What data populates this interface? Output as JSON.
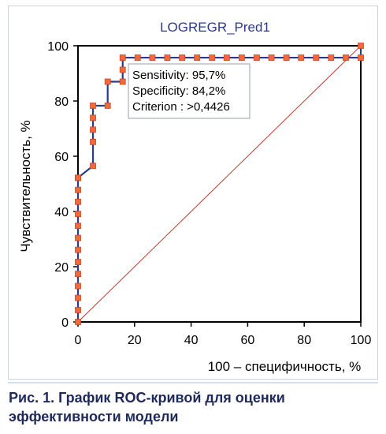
{
  "figure": {
    "caption": "Рис. 1. График ROC-кривой для оценки эффективности модели"
  },
  "chart_data": {
    "type": "line",
    "title": "LOGREGR_Pred1",
    "xlabel": "100 – специфичность, %",
    "ylabel": "Чувствительность, %",
    "xlim": [
      0,
      100
    ],
    "ylim": [
      0,
      100
    ],
    "xticks": [
      0,
      20,
      40,
      60,
      80,
      100
    ],
    "yticks": [
      0,
      20,
      40,
      60,
      80,
      100
    ],
    "tick_labels_x": [
      "0",
      "20",
      "40",
      "60",
      "80",
      "100"
    ],
    "tick_labels_y": [
      "0",
      "20",
      "40",
      "60",
      "80",
      "100"
    ],
    "grid": false,
    "annotation": {
      "lines": [
        "Sensitivity: 95,7%",
        "Specificity: 84,2%",
        "Criterion : >0,4426"
      ]
    },
    "series": [
      {
        "role": "roc-curve",
        "color": "#2b3990",
        "marker_color": "#f26a3c",
        "x": [
          0,
          0,
          0,
          0,
          0,
          0,
          0,
          0,
          0,
          0,
          0,
          0,
          0,
          0,
          0,
          5.3,
          5.3,
          5.3,
          5.3,
          5.3,
          10.5,
          10.5,
          15.8,
          15.8,
          15.8,
          21.1,
          26.3,
          31.6,
          36.8,
          42.1,
          47.4,
          52.6,
          57.9,
          63.2,
          68.4,
          73.7,
          78.9,
          84.2,
          89.5,
          94.7,
          100,
          100
        ],
        "y": [
          0,
          4.3,
          8.7,
          13,
          17.4,
          21.7,
          26.1,
          30.4,
          34.8,
          39.1,
          43.5,
          47.8,
          52.2,
          52.2,
          52.2,
          56.5,
          65.2,
          69.6,
          73.9,
          78.3,
          78.3,
          87,
          87,
          91.3,
          95.7,
          95.7,
          95.7,
          95.7,
          95.7,
          95.7,
          95.7,
          95.7,
          95.7,
          95.7,
          95.7,
          95.7,
          95.7,
          95.7,
          95.7,
          95.7,
          95.7,
          100
        ]
      },
      {
        "role": "reference-diagonal",
        "color": "#c0392b",
        "x": [
          0,
          100
        ],
        "y": [
          0,
          100
        ]
      }
    ],
    "colors": {
      "axis": "#000000",
      "title": "#2b3990",
      "roc_line": "#2b3990",
      "marker": "#f26a3c",
      "diagonal": "#c0392b"
    }
  }
}
